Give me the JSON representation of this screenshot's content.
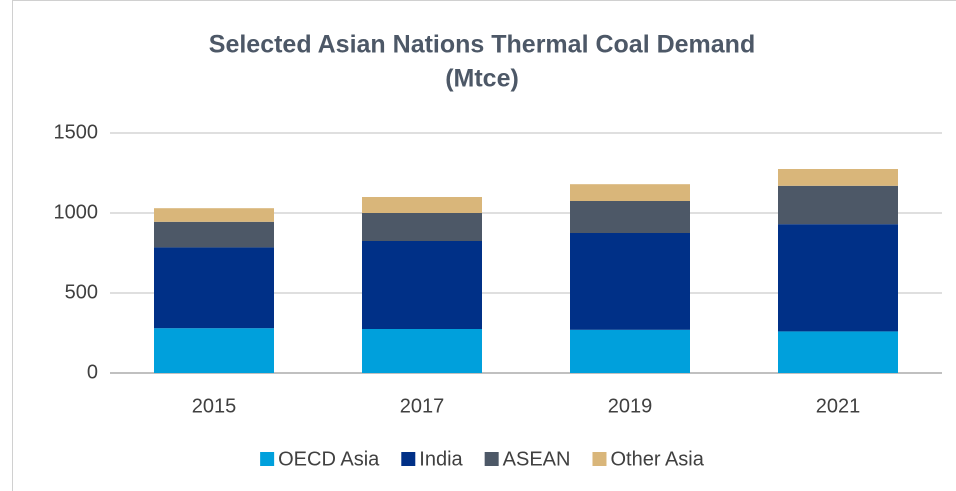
{
  "chart_data": {
    "type": "stacked_bar",
    "title": [
      "Selected Asian Nations Thermal Coal Demand",
      "(Mtce)"
    ],
    "categories": [
      "2015",
      "2017",
      "2019",
      "2021"
    ],
    "series": [
      {
        "name": "OECD Asia",
        "color": "#00a0dc",
        "values": [
          280,
          275,
          270,
          260
        ]
      },
      {
        "name": "India",
        "color": "#003087",
        "values": [
          505,
          550,
          605,
          670
        ]
      },
      {
        "name": "ASEAN",
        "color": "#4d5867",
        "values": [
          160,
          175,
          200,
          240
        ]
      },
      {
        "name": "Other Asia",
        "color": "#d9b67a",
        "values": [
          85,
          100,
          105,
          105
        ]
      }
    ],
    "ylim": [
      0,
      1500
    ],
    "yticks": [
      0,
      500,
      1000,
      1500
    ],
    "grid": true,
    "legend": "bottom"
  }
}
